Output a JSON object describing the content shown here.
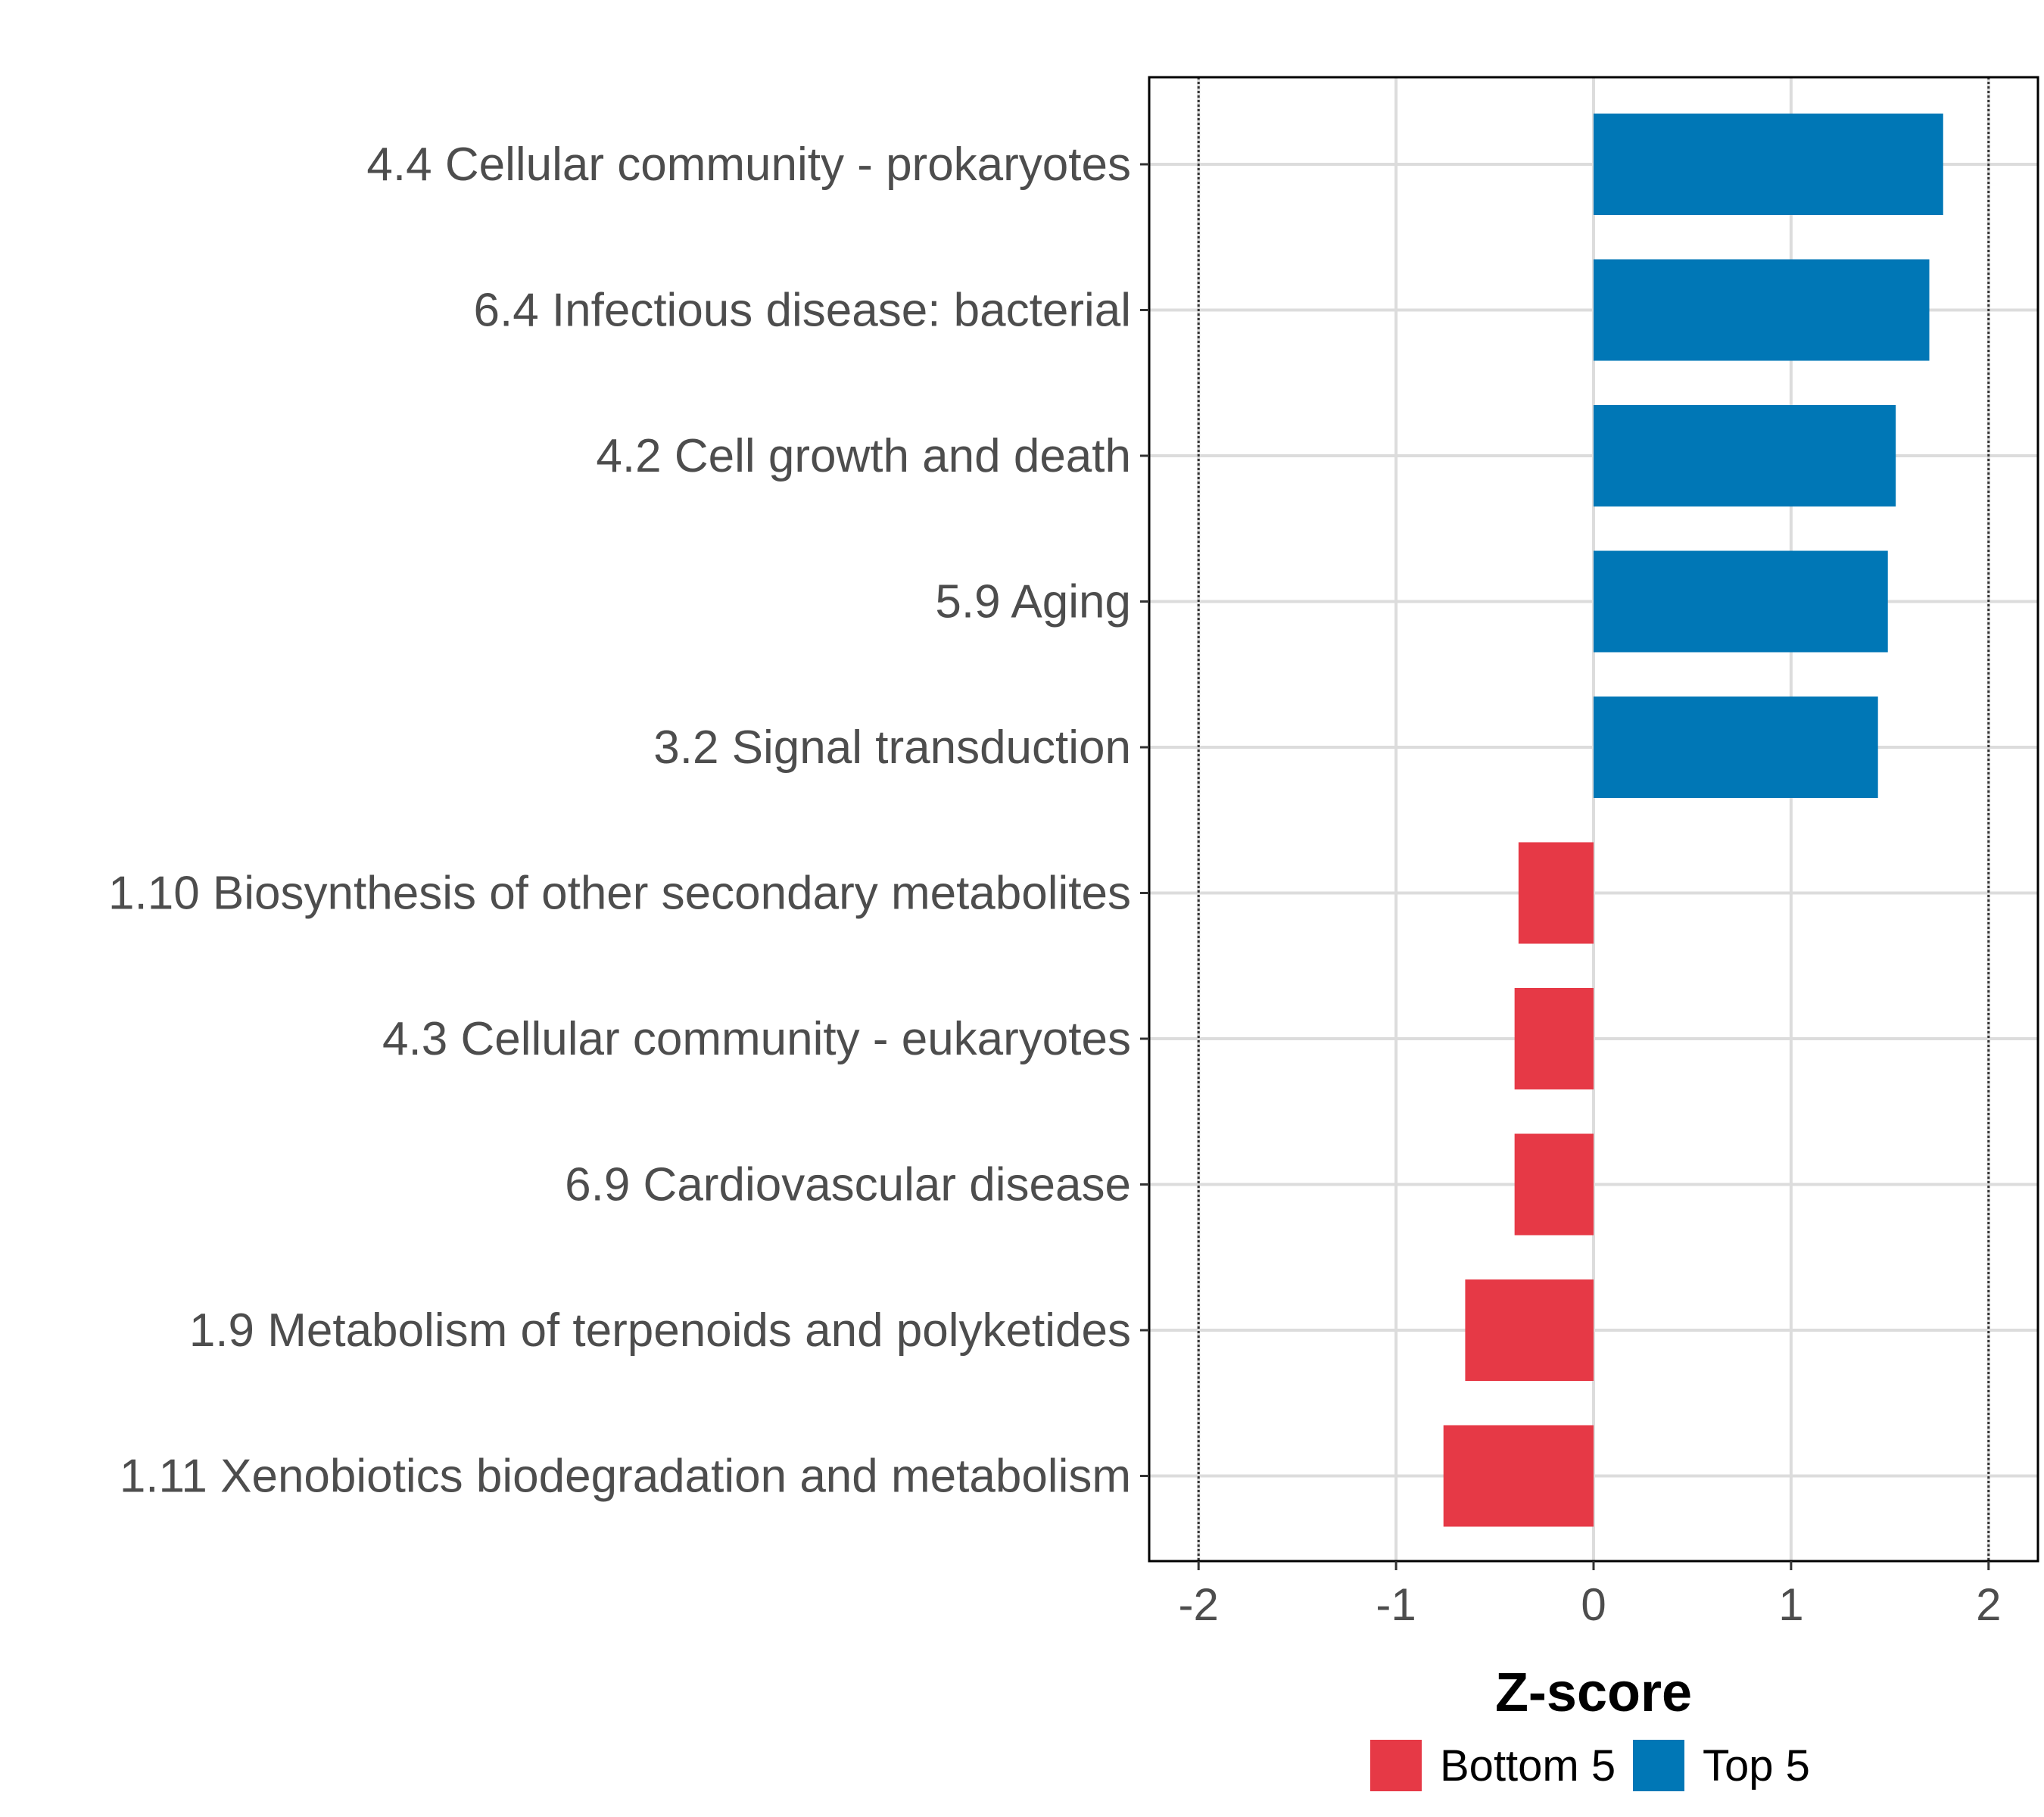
{
  "chart_data": {
    "type": "bar",
    "orientation": "horizontal",
    "title": "",
    "xlabel": "Z-score",
    "ylabel": "",
    "xlim": [
      -2.25,
      2.25
    ],
    "x_ticks": [
      -2,
      -1,
      0,
      1,
      2
    ],
    "x_tick_labels": [
      "-2",
      "-1",
      "0",
      "1",
      "2"
    ],
    "reference_lines": [
      -2,
      2
    ],
    "grid": true,
    "categories": [
      "4.4 Cellular community - prokaryotes",
      "6.4 Infectious disease: bacterial",
      "4.2 Cell growth and death",
      "5.9 Aging",
      "3.2 Signal transduction",
      "1.10 Biosynthesis of other secondary metabolites",
      "4.3 Cellular community - eukaryotes",
      "6.9 Cardiovascular disease",
      "1.9 Metabolism of terpenoids and polyketides",
      "1.11 Xenobiotics biodegradation and metabolism"
    ],
    "values": [
      1.77,
      1.7,
      1.53,
      1.49,
      1.44,
      -0.38,
      -0.4,
      -0.4,
      -0.65,
      -0.76
    ],
    "groups": [
      "Top 5",
      "Top 5",
      "Top 5",
      "Top 5",
      "Top 5",
      "Bottom 5",
      "Bottom 5",
      "Bottom 5",
      "Bottom 5",
      "Bottom 5"
    ],
    "legend": [
      {
        "label": "Bottom 5",
        "color": "#E63946"
      },
      {
        "label": "Top 5",
        "color": "#0077B6"
      }
    ],
    "legend_position": "bottom"
  }
}
